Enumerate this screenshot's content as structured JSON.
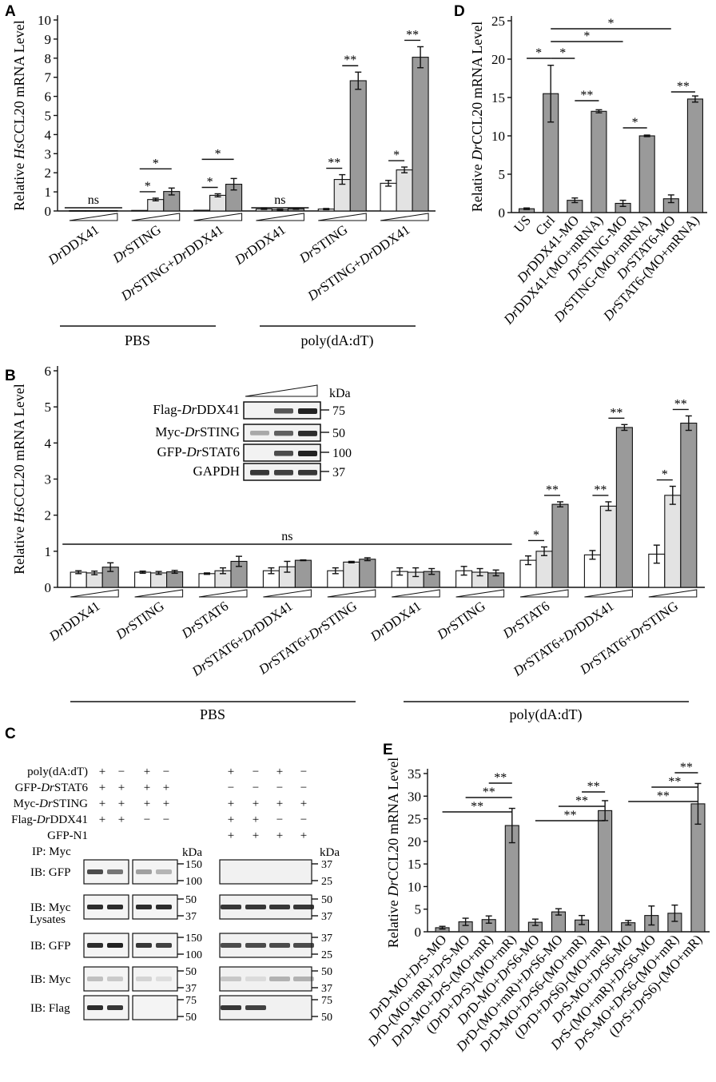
{
  "panel_labels": [
    "A",
    "B",
    "C",
    "D",
    "E"
  ],
  "colors": {
    "white_bar": "#ffffff",
    "light_bar": "#e3e3e3",
    "dark_bar": "#9a9a9a",
    "axis": "#111111"
  },
  "group_labels": {
    "A": [
      "PBS",
      "poly(dA:dT)"
    ],
    "B": [
      "PBS",
      "poly(dA:dT)"
    ]
  },
  "chart_data": [
    {
      "panel": "A",
      "type": "bar",
      "ylabel": "Relative HsCCL20 mRNA Level",
      "ylim": [
        0,
        10
      ],
      "yticks": [
        0,
        1,
        2,
        3,
        4,
        5,
        6,
        7,
        8,
        9,
        10
      ],
      "categories": [
        [
          "Dr",
          "DDX41"
        ],
        [
          "Dr",
          "STING"
        ],
        [
          "Dr",
          "STING+",
          "Dr",
          "DDX41"
        ],
        [
          "Dr",
          "DDX41"
        ],
        [
          "Dr",
          "STING"
        ],
        [
          "Dr",
          "STING+",
          "Dr",
          "DDX41"
        ]
      ],
      "series": [
        {
          "name": "low",
          "values": [
            0.02,
            0.03,
            0.04,
            0.1,
            0.1,
            1.45
          ],
          "errors": [
            0,
            0,
            0,
            0.02,
            0.03,
            0.15
          ]
        },
        {
          "name": "mid",
          "values": [
            0.02,
            0.6,
            0.82,
            0.07,
            1.65,
            2.15
          ],
          "errors": [
            0,
            0.07,
            0.08,
            0.02,
            0.25,
            0.15
          ]
        },
        {
          "name": "high",
          "values": [
            0.02,
            1.02,
            1.4,
            0.12,
            6.82,
            8.05
          ],
          "errors": [
            0,
            0.18,
            0.3,
            0.03,
            0.45,
            0.55
          ]
        }
      ],
      "annotations": [
        {
          "text": "ns",
          "group": 0,
          "type": "ns"
        },
        {
          "text": "*",
          "group": 1,
          "pair": [
            0,
            1
          ]
        },
        {
          "text": "*",
          "group": 1,
          "pair": [
            0,
            2
          ]
        },
        {
          "text": "*",
          "group": 2,
          "pair": [
            0,
            1
          ]
        },
        {
          "text": "*",
          "group": 2,
          "pair": [
            0,
            2
          ]
        },
        {
          "text": "ns",
          "group": 3,
          "type": "ns"
        },
        {
          "text": "**",
          "group": 4,
          "pair": [
            0,
            1
          ]
        },
        {
          "text": "**",
          "group": 4,
          "pair": [
            1,
            2
          ]
        },
        {
          "text": "*",
          "group": 5,
          "pair": [
            0,
            1
          ]
        },
        {
          "text": "**",
          "group": 5,
          "pair": [
            1,
            2
          ]
        }
      ]
    },
    {
      "panel": "B",
      "type": "bar",
      "ylabel": "Relative HsCCL20 mRNA Level",
      "ylim": [
        0,
        6
      ],
      "yticks": [
        0,
        1,
        2,
        3,
        4,
        5,
        6
      ],
      "categories": [
        [
          "Dr",
          "DDX41"
        ],
        [
          "Dr",
          "STING"
        ],
        [
          "Dr",
          "STAT6"
        ],
        [
          "Dr",
          "STAT6+",
          "Dr",
          "DDX41"
        ],
        [
          "Dr",
          "STAT6+",
          "Dr",
          "STING"
        ],
        [
          "Dr",
          "DDX41"
        ],
        [
          "Dr",
          "STING"
        ],
        [
          "Dr",
          "STAT6"
        ],
        [
          "Dr",
          "STAT6+",
          "Dr",
          "DDX41"
        ],
        [
          "Dr",
          "STAT6+",
          "Dr",
          "STING"
        ]
      ],
      "series": [
        {
          "name": "low",
          "values": [
            0.42,
            0.42,
            0.38,
            0.46,
            0.46,
            0.44,
            0.46,
            0.75,
            0.9,
            0.92
          ],
          "errors": [
            0.04,
            0.03,
            0.02,
            0.08,
            0.08,
            0.1,
            0.12,
            0.12,
            0.12,
            0.25
          ]
        },
        {
          "name": "mid",
          "values": [
            0.4,
            0.4,
            0.46,
            0.57,
            0.7,
            0.42,
            0.42,
            1.0,
            2.25,
            2.55
          ],
          "errors": [
            0.05,
            0.04,
            0.08,
            0.15,
            0.02,
            0.12,
            0.1,
            0.12,
            0.12,
            0.25
          ]
        },
        {
          "name": "high",
          "values": [
            0.56,
            0.43,
            0.72,
            0.75,
            0.78,
            0.44,
            0.4,
            2.3,
            4.43,
            4.55
          ],
          "errors": [
            0.12,
            0.04,
            0.14,
            0.01,
            0.04,
            0.08,
            0.08,
            0.07,
            0.08,
            0.2
          ]
        }
      ],
      "annotations": [
        {
          "text": "ns",
          "span": [
            0,
            6
          ],
          "type": "ns"
        },
        {
          "text": "*",
          "group": 7,
          "pair": [
            0,
            1
          ]
        },
        {
          "text": "**",
          "group": 7,
          "pair": [
            1,
            2
          ]
        },
        {
          "text": "**",
          "group": 8,
          "pair": [
            0,
            1
          ]
        },
        {
          "text": "**",
          "group": 8,
          "pair": [
            1,
            2
          ]
        },
        {
          "text": "*",
          "group": 9,
          "pair": [
            0,
            1
          ]
        },
        {
          "text": "**",
          "group": 9,
          "pair": [
            1,
            2
          ]
        }
      ]
    },
    {
      "panel": "D",
      "type": "bar",
      "ylabel": "Relative DrCCL20 mRNA Level",
      "ylim": [
        0,
        25
      ],
      "yticks": [
        0,
        5,
        10,
        15,
        20,
        25
      ],
      "categories": [
        [
          "US"
        ],
        [
          "Ctrl"
        ],
        [
          "Dr",
          "DDX41-MO"
        ],
        [
          "Dr",
          "DDX41-(MO+mRNA)"
        ],
        [
          "Dr",
          "STING-MO"
        ],
        [
          "Dr",
          "STING-(MO+mRNA)"
        ],
        [
          "Dr",
          "STAT6-MO"
        ],
        [
          "Dr",
          "STAT6-(MO+mRNA)"
        ]
      ],
      "values": [
        0.5,
        15.5,
        1.6,
        13.2,
        1.2,
        10.0,
        1.8,
        14.8
      ],
      "errors": [
        0.1,
        3.7,
        0.3,
        0.2,
        0.4,
        0.1,
        0.5,
        0.4
      ],
      "brackets": [
        {
          "text": "*",
          "from": 0,
          "to": 1
        },
        {
          "text": "*",
          "from": 1,
          "to": 2
        },
        {
          "text": "*",
          "from": 1,
          "to": 4
        },
        {
          "text": "*",
          "from": 1,
          "to": 6
        },
        {
          "text": "**",
          "from": 2,
          "to": 3
        },
        {
          "text": "*",
          "from": 4,
          "to": 5
        },
        {
          "text": "**",
          "from": 6,
          "to": 7
        }
      ]
    },
    {
      "panel": "E",
      "type": "bar",
      "ylabel": "Relative DrCCL20 mRNA Level",
      "ylim": [
        0,
        35
      ],
      "yticks": [
        0,
        5,
        10,
        15,
        20,
        25,
        30,
        35
      ],
      "categories": [
        [
          "Dr",
          "D-MO+",
          "Dr",
          "S-MO"
        ],
        [
          "Dr",
          "D-(MO+mR)+",
          "Dr",
          "S-MO"
        ],
        [
          "Dr",
          "D-MO+",
          "Dr",
          "S-(MO+mR)"
        ],
        [
          "(",
          "Dr",
          "D+",
          "Dr",
          "S)-(MO+mR)"
        ],
        [
          "Dr",
          "D-MO+",
          "Dr",
          "S6-MO"
        ],
        [
          "Dr",
          "D-(MO+mR)+",
          "Dr",
          "S6-MO"
        ],
        [
          "Dr",
          "D-MO+",
          "Dr",
          "S6-(MO+mR)"
        ],
        [
          "(",
          "Dr",
          "D+",
          "Dr",
          "S6)-(MO+mR)"
        ],
        [
          "Dr",
          "S-MO+",
          "Dr",
          "S6-MO"
        ],
        [
          "Dr",
          "S-(MO+mR)+",
          "Dr",
          "S6-MO"
        ],
        [
          "Dr",
          "S-MO+",
          "Dr",
          "S6-(MO+mR)"
        ],
        [
          "(",
          "Dr",
          "S+",
          "Dr",
          "S6)-(MO+mR)"
        ]
      ],
      "values": [
        0.9,
        2.2,
        2.7,
        23.5,
        2.1,
        4.4,
        2.6,
        26.8,
        2.0,
        3.6,
        4.1,
        28.3
      ],
      "errors": [
        0.3,
        0.8,
        0.8,
        3.8,
        0.7,
        0.7,
        1.0,
        2.2,
        0.5,
        2.1,
        1.8,
        4.5
      ],
      "brackets": [
        {
          "text": "**",
          "from": 0,
          "to": 3
        },
        {
          "text": "**",
          "from": 1,
          "to": 3
        },
        {
          "text": "**",
          "from": 2,
          "to": 3
        },
        {
          "text": "**",
          "from": 4,
          "to": 7
        },
        {
          "text": "**",
          "from": 5,
          "to": 7
        },
        {
          "text": "**",
          "from": 6,
          "to": 7
        },
        {
          "text": "**",
          "from": 8,
          "to": 11
        },
        {
          "text": "**",
          "from": 9,
          "to": 11
        },
        {
          "text": "**",
          "from": 10,
          "to": 11
        }
      ]
    }
  ],
  "panel_B_inset": {
    "unit": "kDa",
    "rows": [
      {
        "prefix": "Flag-",
        "ital": "Dr",
        "suffix": "DDX41",
        "mw": "75"
      },
      {
        "prefix": "Myc-",
        "ital": "Dr",
        "suffix": "STING",
        "mw": "50"
      },
      {
        "prefix": "GFP-",
        "ital": "Dr",
        "suffix": "STAT6",
        "mw": "100"
      },
      {
        "prefix": "GAPDH",
        "ital": "",
        "suffix": "",
        "mw": "37"
      }
    ]
  },
  "panel_C": {
    "conditions": [
      {
        "prefix": "poly(dA:dT)",
        "ital": "",
        "suffix": "",
        "left": [
          "+",
          "−",
          "+",
          "−"
        ],
        "right": [
          "+",
          "−",
          "+",
          "−"
        ]
      },
      {
        "prefix": "GFP-",
        "ital": "Dr",
        "suffix": "STAT6",
        "left": [
          "+",
          "+",
          "+",
          "+"
        ],
        "right": [
          "−",
          "−",
          "−",
          "−"
        ]
      },
      {
        "prefix": "Myc-",
        "ital": "Dr",
        "suffix": "STING",
        "left": [
          "+",
          "+",
          "+",
          "+"
        ],
        "right": [
          "+",
          "+",
          "+",
          "+"
        ]
      },
      {
        "prefix": "Flag-",
        "ital": "Dr",
        "suffix": "DDX41",
        "left": [
          "+",
          "+",
          "−",
          "−"
        ],
        "right": [
          "+",
          "+",
          "−",
          "−"
        ]
      },
      {
        "prefix": "GFP-N1",
        "ital": "",
        "suffix": "",
        "left": [],
        "right": [
          "+",
          "+",
          "+",
          "+"
        ]
      }
    ],
    "section_ip": "IP: Myc",
    "section_lysates": "Lysates",
    "unit": "kDa",
    "blots": [
      {
        "label": "IB: GFP",
        "left_mw": [
          "150",
          "100"
        ],
        "right_mw": [
          "37",
          "25"
        ]
      },
      {
        "label": "IB: Myc",
        "left_mw": [
          "50",
          "37"
        ],
        "right_mw": [
          "50",
          "37"
        ]
      },
      {
        "label": "IB: GFP",
        "left_mw": [
          "150",
          "100"
        ],
        "right_mw": [
          "37",
          "25"
        ]
      },
      {
        "label": "IB: Myc",
        "left_mw": [
          "50",
          "37"
        ],
        "right_mw": [
          "50",
          "37"
        ]
      },
      {
        "label": "IB: Flag",
        "left_mw": [
          "75",
          "50"
        ],
        "right_mw": [
          "75",
          "50"
        ]
      }
    ]
  }
}
